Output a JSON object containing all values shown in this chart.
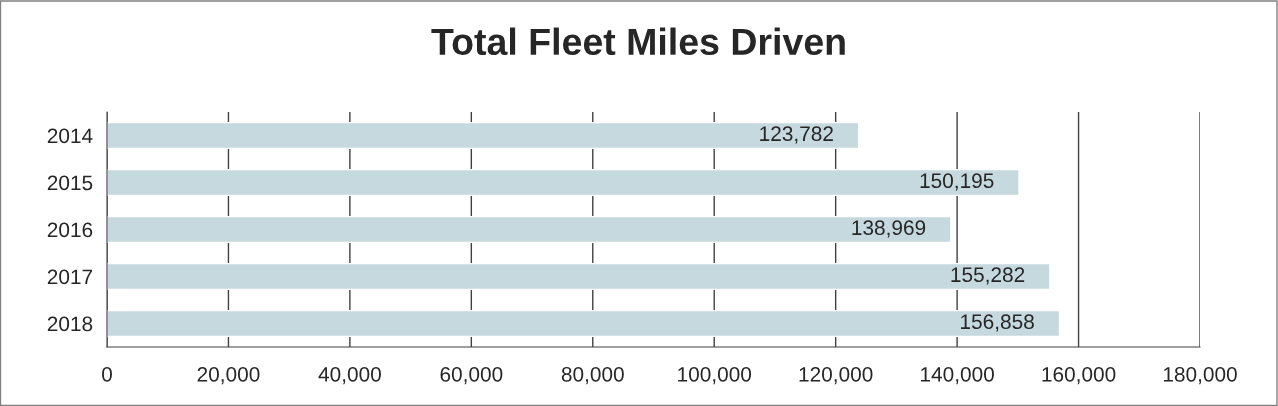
{
  "chart_data": {
    "type": "bar",
    "orientation": "horizontal",
    "title": "Total Fleet Miles Driven",
    "categories": [
      "2014",
      "2015",
      "2016",
      "2017",
      "2018"
    ],
    "values": [
      123782,
      150195,
      138969,
      155282,
      156858
    ],
    "value_labels": [
      "123,782",
      "150,195",
      "138,969",
      "155,282",
      "156,858"
    ],
    "color": "#c6d9df",
    "xlim": [
      0,
      180000
    ],
    "xticks": [
      0,
      {
        "value": 20000,
        "label": "20,000"
      },
      {
        "value": 40000,
        "label": "40,000"
      },
      {
        "value": 60000,
        "label": "60,000"
      },
      {
        "value": 80000,
        "label": "80,000"
      },
      {
        "value": 100000,
        "label": "100,000"
      },
      {
        "value": 120000,
        "label": "120,000"
      },
      {
        "value": 140000,
        "label": "140,000"
      },
      {
        "value": 160000,
        "label": "160,000"
      },
      {
        "value": 180000,
        "label": "180,000"
      }
    ],
    "grid": "x",
    "legend": false
  }
}
